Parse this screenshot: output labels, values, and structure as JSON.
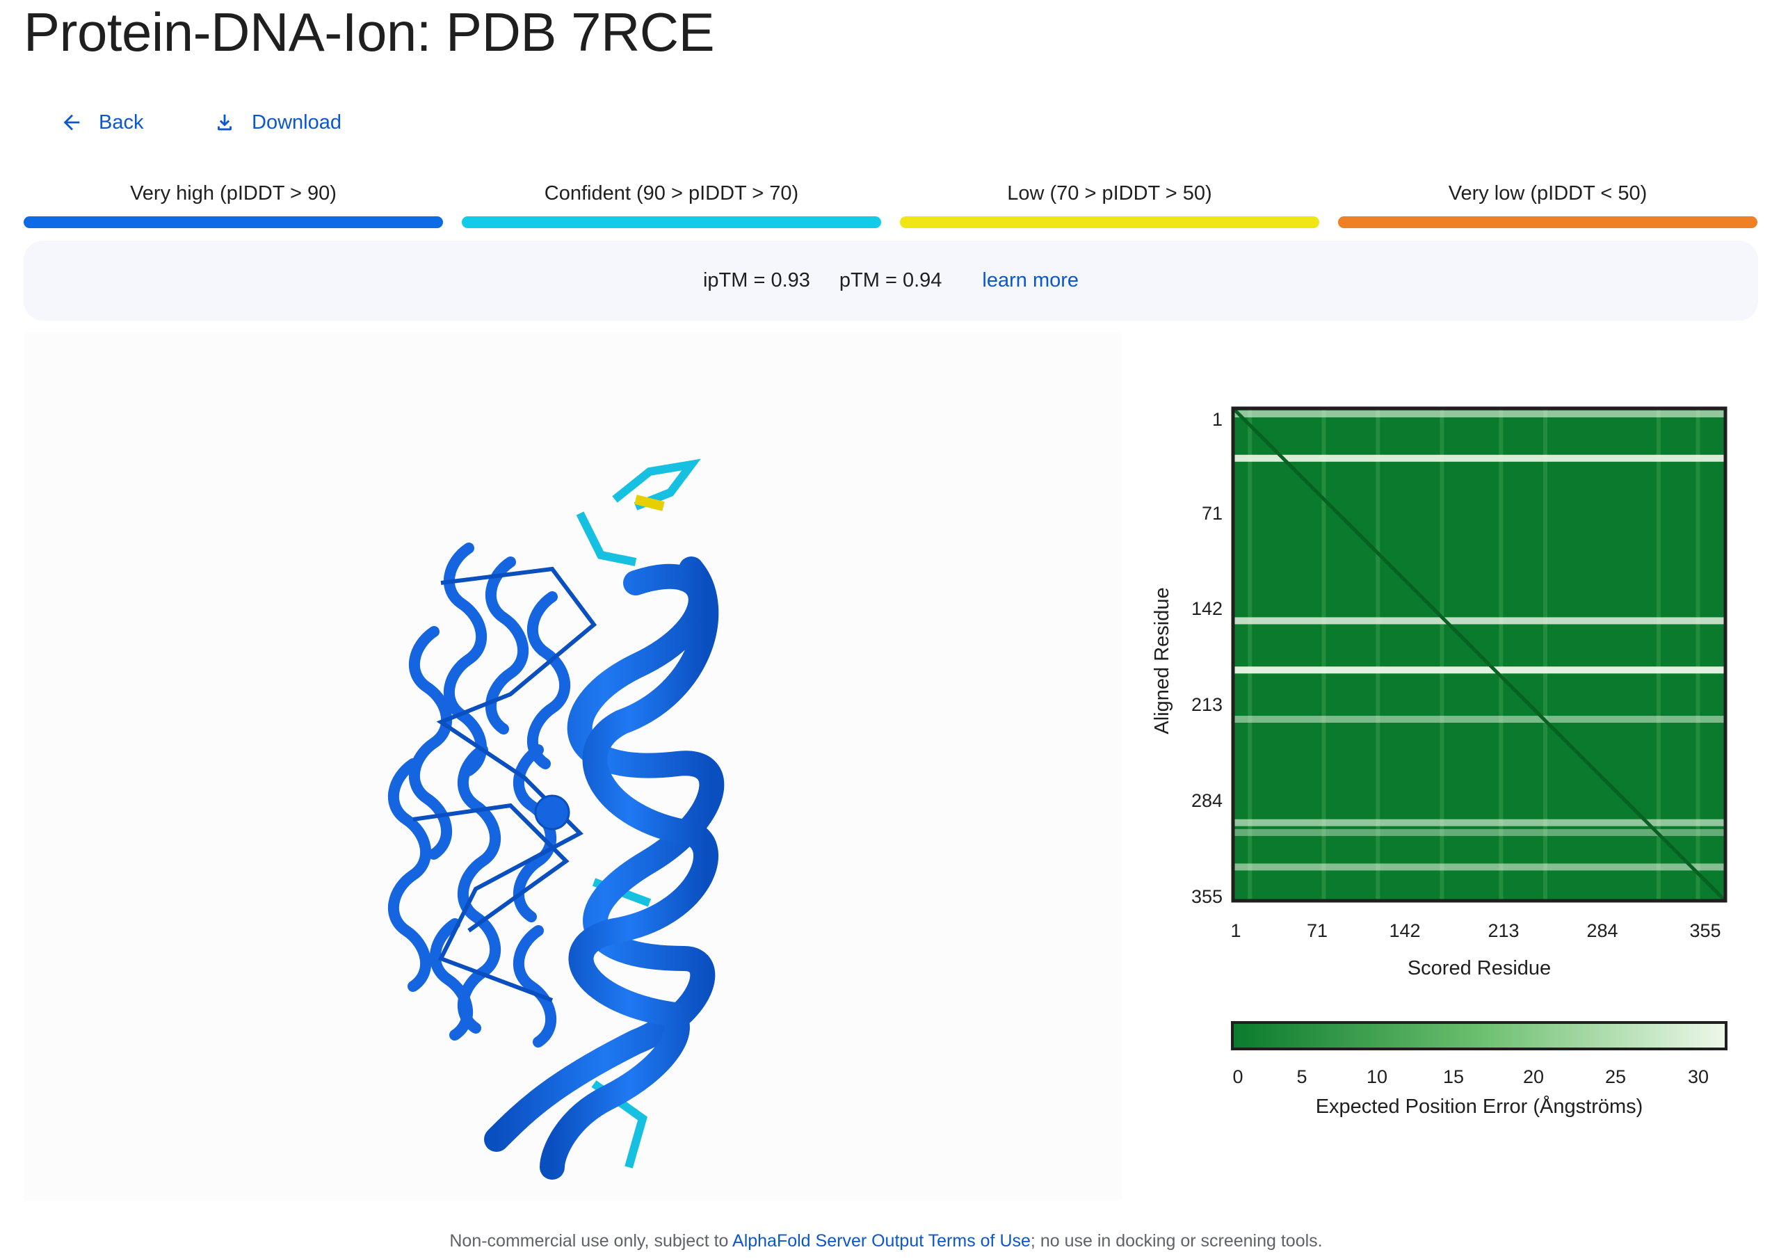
{
  "header": {
    "title": "Protein-DNA-Ion: PDB 7RCE"
  },
  "nav": {
    "back_label": "Back",
    "download_label": "Download"
  },
  "plddt_legend": [
    {
      "label": "Very high (pIDDT > 90)",
      "color": "#0f6ae6"
    },
    {
      "label": "Confident (90 > pIDDT > 70)",
      "color": "#11cbe8"
    },
    {
      "label": "Low (70 > pIDDT > 50)",
      "color": "#f0e515"
    },
    {
      "label": "Very low (pIDDT < 50)",
      "color": "#f08024"
    }
  ],
  "scores": {
    "iptm": "ipTM = 0.93",
    "ptm": "pTM = 0.94",
    "learn_more": "learn more"
  },
  "pae": {
    "y_title": "Aligned Residue",
    "x_title": "Scored Residue",
    "y_ticks": [
      "1",
      "71",
      "142",
      "213",
      "284",
      "355"
    ],
    "x_ticks": [
      "1",
      "71",
      "142",
      "213",
      "284",
      "355"
    ],
    "colorbar_ticks": [
      "0",
      "5",
      "10",
      "15",
      "20",
      "25",
      "30"
    ],
    "colorbar_label": "Expected Position Error (Ångströms)",
    "color_low": "#0a7a2c",
    "color_high": "#eef8ea"
  },
  "footer": {
    "prefix": "Non-commercial use only, subject to ",
    "link": "AlphaFold Server Output Terms of Use",
    "suffix": "; no use in docking or screening tools."
  }
}
